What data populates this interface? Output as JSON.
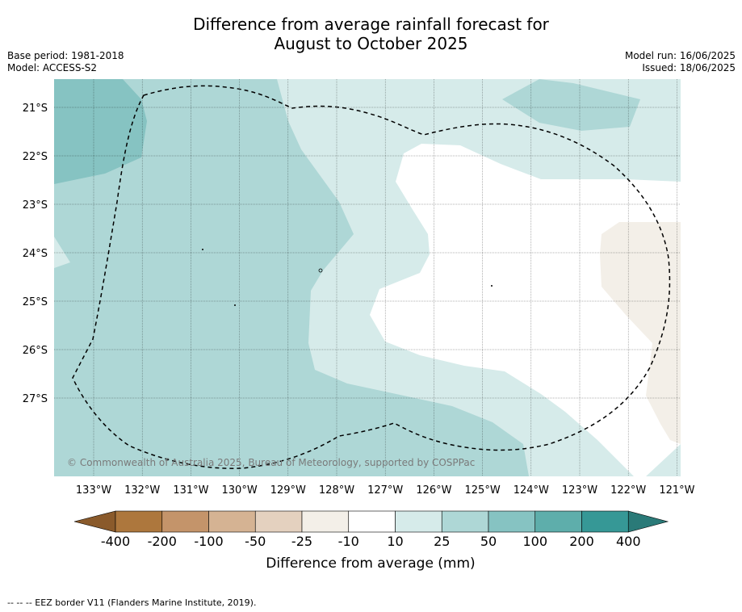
{
  "title_line1": "Difference from average rainfall forecast for",
  "title_line2": "August to October 2025",
  "base_period": "Base period: 1981-2018",
  "model": "Model: ACCESS-S2",
  "model_run": "Model run: 16/06/2025",
  "issued": "Issued: 18/06/2025",
  "copyright": "© Commonwealth of Australia 2025, Bureau of Meteorology, supported by COSPPac",
  "lat_labels": [
    "21°S",
    "22°S",
    "23°S",
    "24°S",
    "25°S",
    "26°S",
    "27°S"
  ],
  "lon_labels": [
    "133°W",
    "132°W",
    "131°W",
    "130°W",
    "129°W",
    "128°W",
    "127°W",
    "126°W",
    "125°W",
    "124°W",
    "123°W",
    "122°W",
    "121°W"
  ],
  "colorbar": {
    "ticks": [
      "-400",
      "-200",
      "-100",
      "-50",
      "-25",
      "-10",
      "10",
      "25",
      "50",
      "100",
      "200",
      "400"
    ],
    "colors": [
      "#ad773d",
      "#c4946a",
      "#d5b393",
      "#e4d1bf",
      "#f3efe8",
      "#ffffff",
      "#d6ebea",
      "#aed7d6",
      "#86c3c2",
      "#5eaeab",
      "#369896"
    ],
    "under_color": "#8a5a2b",
    "over_color": "#2a7a78",
    "label": "Difference from average (mm)"
  },
  "footnote": "--  --  -- EEZ border V11 (Flanders Marine Institute, 2019)."
}
